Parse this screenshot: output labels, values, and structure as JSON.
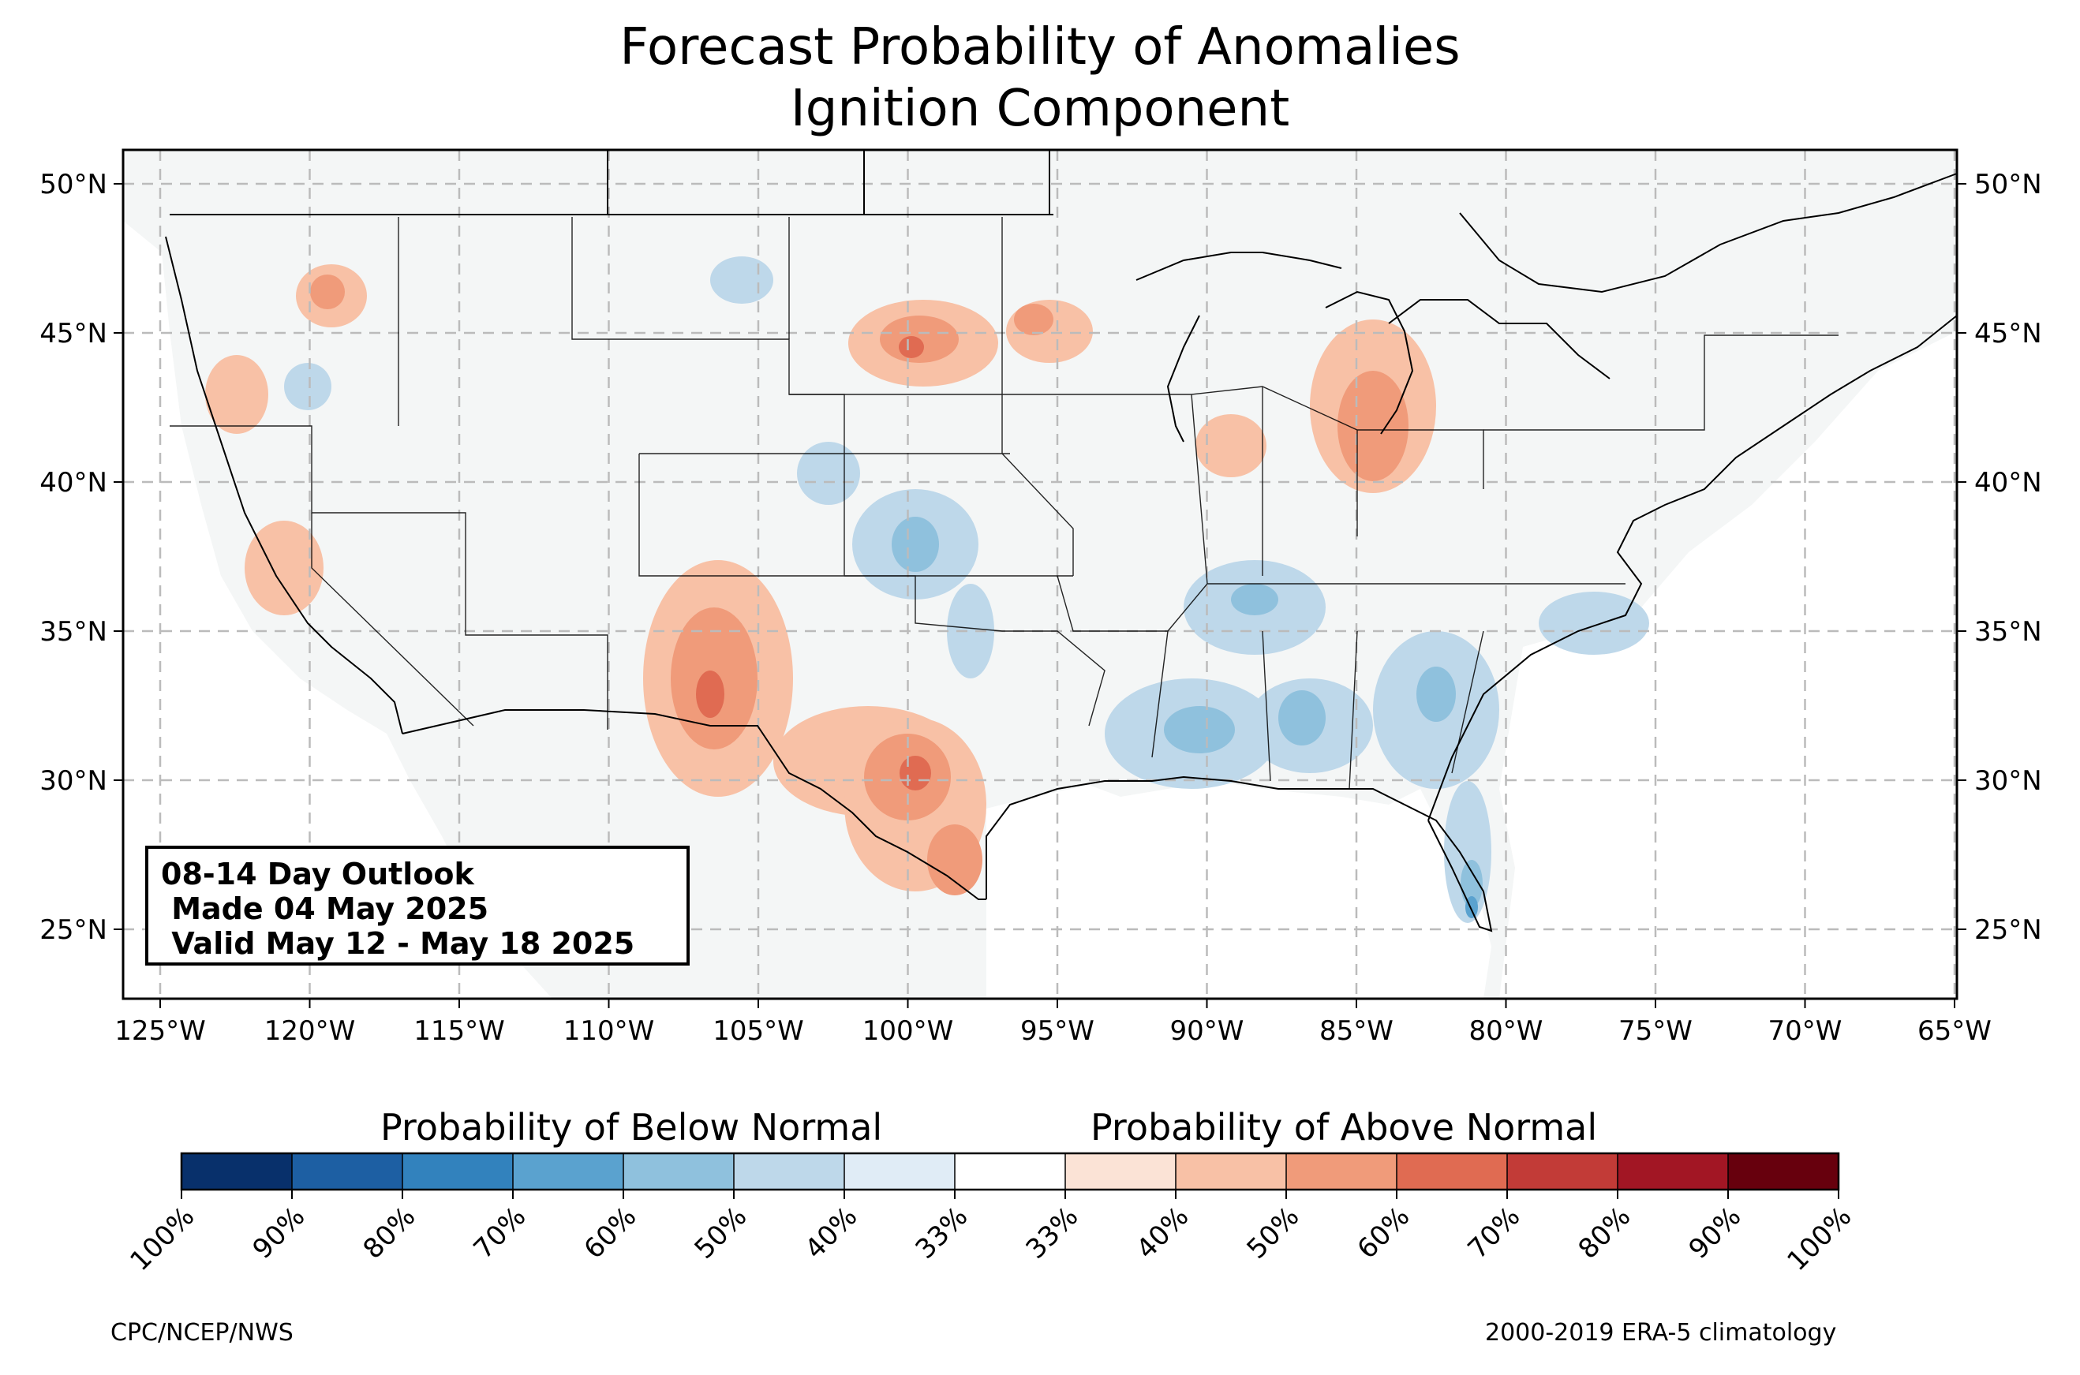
{
  "title": [
    "Forecast Probability of Anomalies",
    "Ignition Component"
  ],
  "outlook_box": [
    "08-14 Day Outlook",
    " Made 04 May 2025",
    " Valid May 12 - May 18 2025"
  ],
  "lon_ticks": [
    "125°W",
    "120°W",
    "115°W",
    "110°W",
    "105°W",
    "100°W",
    "95°W",
    "90°W",
    "85°W",
    "80°W",
    "75°W",
    "70°W",
    "65°W"
  ],
  "lat_ticks": [
    "50°N",
    "45°N",
    "40°N",
    "35°N",
    "30°N",
    "25°N"
  ],
  "colorbar": {
    "below_label": "Probability of Below Normal",
    "above_label": "Probability of Above Normal",
    "colors": [
      "#08306b",
      "#1d5fa3",
      "#3282bd",
      "#5aa2cf",
      "#8fc1dd",
      "#bed8ea",
      "#e0ecf6",
      "#ffffff",
      "#fbe3d6",
      "#f8c1a6",
      "#f09b7a",
      "#e06b52",
      "#c23b37",
      "#a21624",
      "#67000d"
    ],
    "tick_labels": [
      "100%",
      "90%",
      "80%",
      "70%",
      "60%",
      "50%",
      "40%",
      "33%",
      "33%",
      "40%",
      "50%",
      "60%",
      "70%",
      "80%",
      "90%",
      "100%"
    ]
  },
  "footer": {
    "left": "CPC/NCEP/NWS",
    "right": "2000-2019 ERA-5 climatology"
  }
}
